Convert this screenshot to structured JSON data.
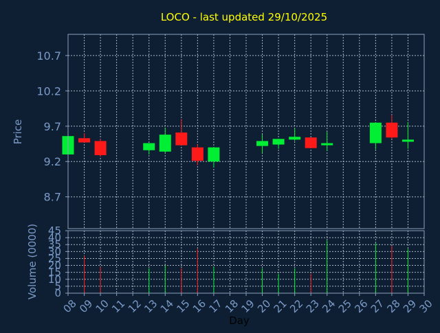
{
  "chart_data": {
    "type": "candlestick",
    "title": "LOCO - last updated 29/10/2025",
    "xlabel": "Day",
    "price": {
      "ylabel": "Price",
      "ylim": [
        8.25,
        11.0
      ],
      "yticks": [
        "8.7",
        "9.2",
        "9.7",
        "10.2",
        "10.7"
      ],
      "ytick_values": [
        8.7,
        9.2,
        9.7,
        10.2,
        10.7
      ],
      "grid": true
    },
    "volume": {
      "ylabel": "Volume (0000)",
      "ylim": [
        0,
        45
      ],
      "yticks": [
        "0",
        "5",
        "10",
        "15",
        "20",
        "25",
        "30",
        "35",
        "40",
        "45"
      ],
      "ytick_values": [
        0,
        5,
        10,
        15,
        20,
        25,
        30,
        35,
        40,
        45
      ],
      "grid": true
    },
    "x_range": [
      8,
      30
    ],
    "x_ticks": [
      "08",
      "09",
      "10",
      "11",
      "12",
      "13",
      "14",
      "15",
      "16",
      "17",
      "18",
      "19",
      "20",
      "21",
      "22",
      "23",
      "24",
      "25",
      "26",
      "27",
      "28",
      "29",
      "30"
    ],
    "candles": [
      {
        "day": 8,
        "open": 9.3,
        "close": 9.56,
        "high": 9.56,
        "low": 9.3,
        "volume": 0
      },
      {
        "day": 9,
        "open": 9.53,
        "close": 9.47,
        "high": 9.6,
        "low": 9.47,
        "volume": 27
      },
      {
        "day": 10,
        "open": 9.49,
        "close": 9.29,
        "high": 9.52,
        "low": 9.27,
        "volume": 19
      },
      {
        "day": 13,
        "open": 9.36,
        "close": 9.46,
        "high": 9.46,
        "low": 9.3,
        "volume": 18
      },
      {
        "day": 14,
        "open": 9.34,
        "close": 9.58,
        "high": 9.68,
        "low": 9.32,
        "volume": 20
      },
      {
        "day": 15,
        "open": 9.61,
        "close": 9.43,
        "high": 9.8,
        "low": 9.43,
        "volume": 18
      },
      {
        "day": 16,
        "open": 9.4,
        "close": 9.21,
        "high": 9.44,
        "low": 9.15,
        "volume": 32
      },
      {
        "day": 17,
        "open": 9.2,
        "close": 9.4,
        "high": 9.4,
        "low": 9.12,
        "volume": 19
      },
      {
        "day": 20,
        "open": 9.42,
        "close": 9.49,
        "high": 9.58,
        "low": 9.32,
        "volume": 18
      },
      {
        "day": 21,
        "open": 9.44,
        "close": 9.52,
        "high": 9.52,
        "low": 9.38,
        "volume": 14
      },
      {
        "day": 22,
        "open": 9.51,
        "close": 9.55,
        "high": 9.67,
        "low": 9.49,
        "volume": 18
      },
      {
        "day": 23,
        "open": 9.54,
        "close": 9.39,
        "high": 9.54,
        "low": 9.39,
        "volume": 14
      },
      {
        "day": 24,
        "open": 9.43,
        "close": 9.46,
        "high": 9.62,
        "low": 9.35,
        "volume": 38
      },
      {
        "day": 27,
        "open": 9.46,
        "close": 9.75,
        "high": 9.75,
        "low": 9.37,
        "volume": 36
      },
      {
        "day": 28,
        "open": 9.75,
        "close": 9.54,
        "high": 9.86,
        "low": 9.52,
        "volume": 34
      },
      {
        "day": 29,
        "open": 9.48,
        "close": 9.51,
        "high": 9.76,
        "low": 9.38,
        "volume": 32
      }
    ],
    "colors": {
      "up": "#00ee33",
      "down": "#ff1a1a",
      "title": "#ffff00",
      "axis_text": "#7a9bc8",
      "frame": "#8aa0bd",
      "grid": "#c8d2de",
      "background": "#0f1f33"
    }
  }
}
